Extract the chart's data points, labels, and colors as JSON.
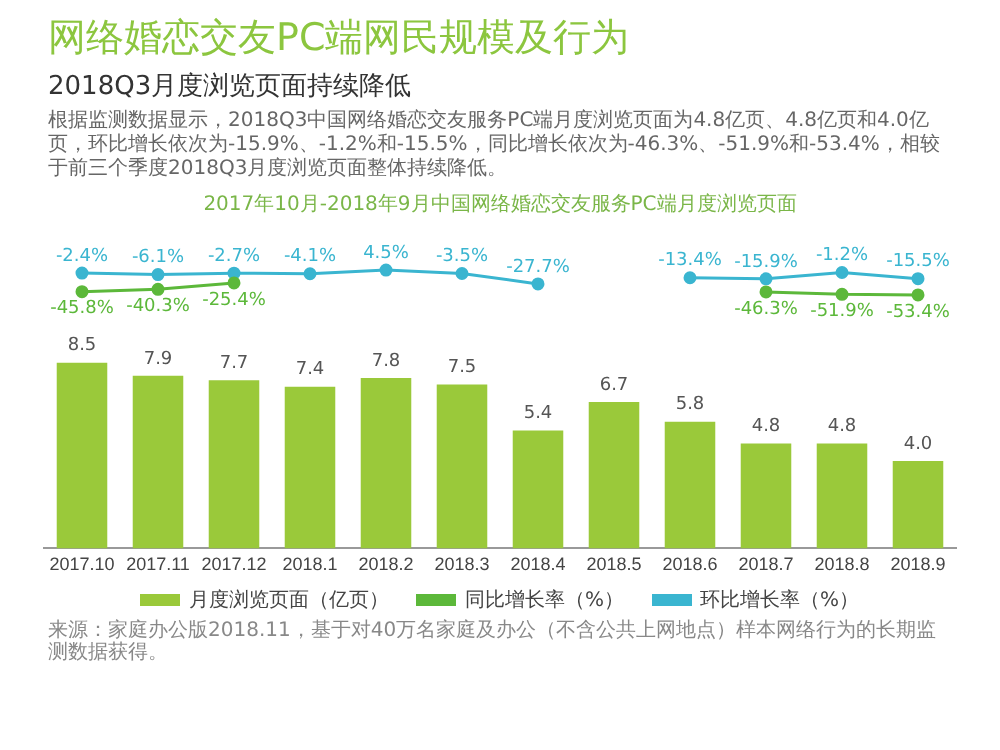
{
  "chart_data": [
    {
      "type": "line",
      "title": "网络婚恋交友PC端网民规模及行为",
      "subtitle": "2018Q3月度浏览页面持续降低",
      "annotations": [
        "根据监测数据显示，2018Q3中国网络婚恋交友服务PC端月度浏览页面为4.8亿页、4.8亿页和4.0亿页，环比增长依次为-15.9%、-1.2%和-15.5%，同比增长依次为-46.3%、-51.9%和-53.4%，相较于前三个季度2018Q3月度浏览页面整体持续降低。",
        "2017年10月-2018年9月中国网络婚恋交友服务PC端月度浏览页面"
      ],
      "categories": [
        "2017.10",
        "2017.11",
        "2017.12",
        "2018.1",
        "2018.2",
        "2018.3",
        "2018.4",
        "2018.5",
        "2018.6",
        "2018.7",
        "2018.8",
        "2018.9"
      ],
      "series": [
        {
          "name": "同比增长率（%）",
          "color": "#5cb83a",
          "values": [
            -45.8,
            -40.3,
            -25.4,
            null,
            null,
            null,
            null,
            null,
            null,
            -46.3,
            -51.9,
            -53.4
          ],
          "value_labels": [
            "-45.8%",
            "-40.3%",
            "-25.4%",
            null,
            null,
            null,
            null,
            null,
            null,
            "-46.3%",
            "-51.9%",
            "-53.4%"
          ]
        },
        {
          "name": "环比增长率（%）",
          "color": "#3ab5d0",
          "values": [
            -2.4,
            -6.1,
            -2.7,
            -4.1,
            4.5,
            -3.5,
            -27.7,
            null,
            -13.4,
            -15.9,
            -1.2,
            -15.5
          ],
          "value_labels": [
            "-2.4%",
            "-6.1%",
            "-2.7%",
            "-4.1%",
            "4.5%",
            "-3.5%",
            "-27.7%",
            null,
            "-13.4%",
            "-15.9%",
            "-1.2%",
            "-15.5%"
          ]
        }
      ],
      "legend": "bottom",
      "marker": "circle",
      "grid": false,
      "tick_labels": false
    },
    {
      "type": "bar",
      "annotations": [
        "来源：家庭办公版2018.11，基于对40万名家庭及办公（不含公共上网地点）样本网络行为的长期监测数据获得。"
      ],
      "categories": [
        "2017.10",
        "2017.11",
        "2017.12",
        "2018.1",
        "2018.2",
        "2018.3",
        "2018.4",
        "2018.5",
        "2018.6",
        "2018.7",
        "2018.8",
        "2018.9"
      ],
      "series": [
        {
          "name": "月度浏览页面（亿页）",
          "color": "#9ac93a",
          "values": [
            8.5,
            7.9,
            7.7,
            7.4,
            7.8,
            7.5,
            5.4,
            6.7,
            5.8,
            4.8,
            4.8,
            4.0
          ],
          "value_labels": [
            "8.5",
            "7.9",
            "7.7",
            "7.4",
            "7.8",
            "7.5",
            "5.4",
            "6.7",
            "5.8",
            "4.8",
            "4.8",
            "4.0"
          ]
        }
      ],
      "legend": "bottom",
      "grid": false,
      "tick_labels": "x"
    }
  ]
}
